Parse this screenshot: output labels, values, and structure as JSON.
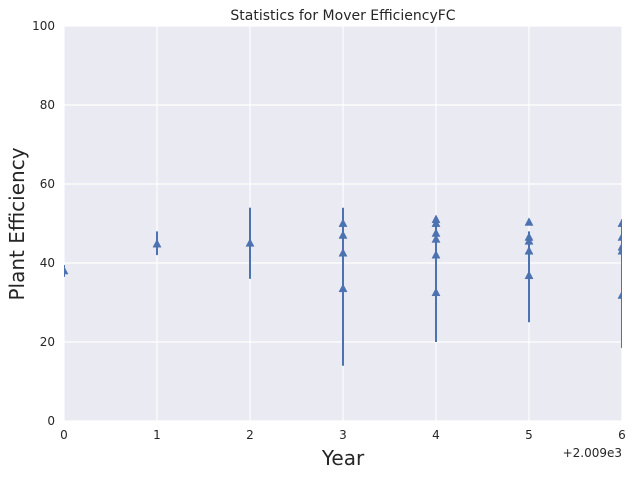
{
  "chart_data": {
    "type": "scatter",
    "title": "Statistics for Mover EfficiencyFC",
    "xlabel": "Year",
    "ylabel": "Plant Efficiency",
    "x_offset_label": "+2.009e3",
    "xlim": [
      0,
      6
    ],
    "ylim": [
      0,
      100
    ],
    "xticks": [
      "0",
      "1",
      "2",
      "3",
      "4",
      "5",
      "6"
    ],
    "yticks": [
      "0",
      "20",
      "40",
      "60",
      "80",
      "100"
    ],
    "grid": true,
    "background": "#eaeaf2",
    "grid_color": "#ffffff",
    "series_color": "#4c72b0",
    "marker": "triangle-up",
    "errorbars": [
      {
        "x": 0,
        "low": 36.5,
        "high": 39.5
      },
      {
        "x": 1,
        "low": 42,
        "high": 48
      },
      {
        "x": 2,
        "low": 36,
        "high": 54
      },
      {
        "x": 3,
        "low": 14,
        "high": 54
      },
      {
        "x": 4,
        "low": 20,
        "high": 51
      },
      {
        "x": 5,
        "low": 25,
        "high": 48
      },
      {
        "x": 6,
        "low": 18.5,
        "high": 51
      }
    ],
    "points": [
      {
        "x": 0,
        "y": 38
      },
      {
        "x": 1,
        "y": 44.8
      },
      {
        "x": 2,
        "y": 45
      },
      {
        "x": 3,
        "y": 50
      },
      {
        "x": 3,
        "y": 47
      },
      {
        "x": 3,
        "y": 42.5
      },
      {
        "x": 3,
        "y": 33.5
      },
      {
        "x": 4,
        "y": 51
      },
      {
        "x": 4,
        "y": 50
      },
      {
        "x": 4,
        "y": 47.5
      },
      {
        "x": 4,
        "y": 46
      },
      {
        "x": 4,
        "y": 42
      },
      {
        "x": 4,
        "y": 32.5
      },
      {
        "x": 5,
        "y": 50.3
      },
      {
        "x": 5,
        "y": 46.5
      },
      {
        "x": 5,
        "y": 45.5
      },
      {
        "x": 5,
        "y": 43
      },
      {
        "x": 5,
        "y": 36.8
      },
      {
        "x": 6,
        "y": 50
      },
      {
        "x": 6,
        "y": 46.5
      },
      {
        "x": 6,
        "y": 44
      },
      {
        "x": 6,
        "y": 43
      },
      {
        "x": 6,
        "y": 31.8
      }
    ]
  }
}
